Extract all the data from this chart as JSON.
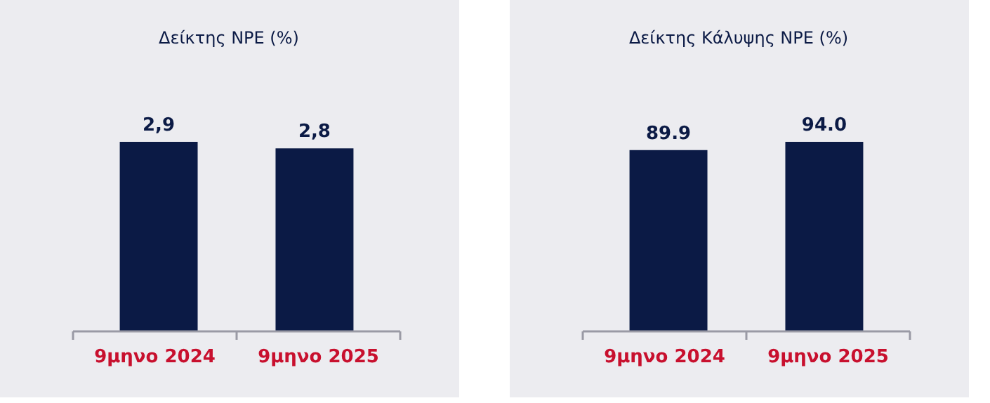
{
  "chart_data": [
    {
      "type": "bar",
      "title": "Δείκτης NPE (%)",
      "categories": [
        "9μηνο 2024",
        "9μηνο 2025"
      ],
      "values": [
        2.9,
        2.8
      ],
      "value_labels": [
        "2,9",
        "2,8"
      ],
      "color": "#0b1a45"
    },
    {
      "type": "bar",
      "title": "Δείκτης Κάλυψης NPE (%)",
      "categories": [
        "9μηνο 2024",
        "9μηνο 2025"
      ],
      "values": [
        89.9,
        94.0
      ],
      "value_labels": [
        "89.9",
        "94.0"
      ],
      "color": "#0b1a45"
    }
  ]
}
